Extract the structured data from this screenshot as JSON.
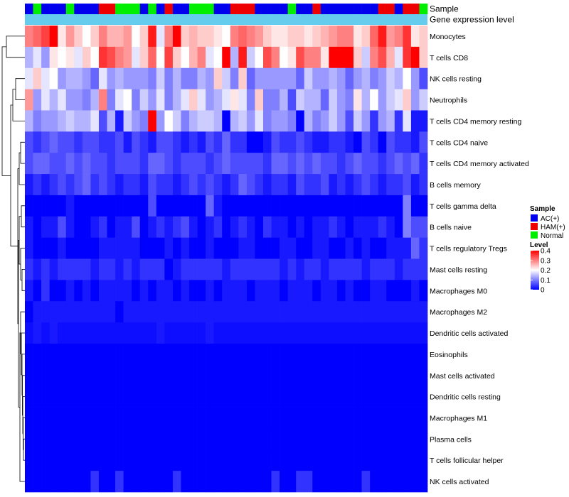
{
  "chart_data": {
    "type": "heatmap",
    "annotations": {
      "sample_title": "Sample",
      "gene_title": "Gene expression level",
      "gene_color": "#66ccee"
    },
    "sample_groups": [
      {
        "label": "AC(+)",
        "color": "#0000ee"
      },
      {
        "label": "HAM(+)",
        "color": "#ee0000"
      },
      {
        "label": "Normal",
        "color": "#00ee00"
      }
    ],
    "column_samples": [
      0,
      2,
      0,
      0,
      0,
      2,
      0,
      0,
      0,
      1,
      1,
      2,
      2,
      2,
      0,
      2,
      0,
      1,
      0,
      0,
      2,
      2,
      2,
      0,
      0,
      1,
      1,
      1,
      0,
      0,
      0,
      0,
      2,
      0,
      0,
      1,
      0,
      0,
      0,
      0,
      0,
      0,
      0,
      1,
      1,
      0,
      1,
      1,
      2
    ],
    "rows": [
      "Monocytes",
      "T cells CD8",
      "NK cells resting",
      "Neutrophils",
      "T cells CD4 memory resting",
      "T cells CD4 naive",
      "T cells CD4 memory activated",
      "B cells memory",
      "T cells gamma delta",
      "B cells naive",
      "T cells regulatory  Tregs",
      "Mast cells resting",
      "Macrophages M0",
      "Macrophages M2",
      "Dendritic cells activated",
      "Eosinophils",
      "Mast cells activated",
      "Dendritic cells resting",
      "Macrophages M1",
      "Plasma cells",
      "T cells follicular helper",
      "NK cells activated"
    ],
    "values": [
      [
        0.3,
        0.32,
        0.35,
        0.4,
        0.22,
        0.28,
        0.24,
        0.2,
        0.24,
        0.3,
        0.26,
        0.26,
        0.28,
        0.2,
        0.24,
        0.38,
        0.18,
        0.3,
        0.4,
        0.24,
        0.26,
        0.24,
        0.24,
        0.22,
        0.2,
        0.3,
        0.32,
        0.3,
        0.28,
        0.24,
        0.22,
        0.22,
        0.24,
        0.24,
        0.22,
        0.24,
        0.26,
        0.28,
        0.3,
        0.3,
        0.22,
        0.24,
        0.32,
        0.38,
        0.28,
        0.3,
        0.36,
        0.22,
        0.24
      ],
      [
        0.14,
        0.18,
        0.12,
        0.22,
        0.2,
        0.22,
        0.18,
        0.24,
        0.2,
        0.36,
        0.34,
        0.3,
        0.28,
        0.18,
        0.24,
        0.32,
        0.2,
        0.35,
        0.24,
        0.2,
        0.26,
        0.3,
        0.18,
        0.2,
        0.4,
        0.14,
        0.38,
        0.16,
        0.2,
        0.34,
        0.3,
        0.2,
        0.22,
        0.34,
        0.3,
        0.3,
        0.22,
        0.4,
        0.4,
        0.4,
        0.24,
        0.16,
        0.3,
        0.34,
        0.26,
        0.18,
        0.36,
        0.4,
        0.24
      ],
      [
        0.18,
        0.24,
        0.18,
        0.2,
        0.12,
        0.14,
        0.14,
        0.12,
        0.08,
        0.18,
        0.12,
        0.14,
        0.12,
        0.12,
        0.12,
        0.1,
        0.16,
        0.1,
        0.14,
        0.1,
        0.1,
        0.14,
        0.12,
        0.24,
        0.16,
        0.1,
        0.24,
        0.08,
        0.12,
        0.12,
        0.12,
        0.12,
        0.12,
        0.08,
        0.16,
        0.12,
        0.12,
        0.14,
        0.12,
        0.08,
        0.12,
        0.14,
        0.1,
        0.12,
        0.16,
        0.14,
        0.2,
        0.12,
        0.06
      ],
      [
        0.28,
        0.12,
        0.18,
        0.14,
        0.18,
        0.12,
        0.12,
        0.1,
        0.14,
        0.3,
        0.1,
        0.18,
        0.2,
        0.1,
        0.16,
        0.12,
        0.18,
        0.1,
        0.14,
        0.18,
        0.24,
        0.18,
        0.12,
        0.14,
        0.18,
        0.22,
        0.18,
        0.1,
        0.24,
        0.1,
        0.1,
        0.14,
        0.06,
        0.16,
        0.14,
        0.14,
        0.08,
        0.16,
        0.12,
        0.1,
        0.22,
        0.14,
        0.2,
        0.12,
        0.16,
        0.18,
        0.24,
        0.12,
        0.16
      ],
      [
        0.14,
        0.1,
        0.12,
        0.12,
        0.14,
        0.16,
        0.14,
        0.14,
        0.18,
        0.06,
        0.14,
        0.02,
        0.16,
        0.12,
        0.1,
        0.4,
        0.12,
        0.2,
        0.16,
        0.1,
        0.14,
        0.16,
        0.16,
        0.14,
        0.0,
        0.14,
        0.16,
        0.12,
        0.18,
        0.1,
        0.12,
        0.12,
        0.1,
        0.0,
        0.14,
        0.1,
        0.12,
        0.16,
        0.12,
        0.06,
        0.16,
        0.12,
        0.04,
        0.12,
        0.14,
        0.04,
        0.18,
        0.02,
        0.02
      ],
      [
        0.06,
        0.04,
        0.06,
        0.08,
        0.06,
        0.06,
        0.04,
        0.06,
        0.06,
        0.04,
        0.04,
        0.06,
        0.02,
        0.06,
        0.04,
        0.02,
        0.06,
        0.06,
        0.04,
        0.02,
        0.04,
        0.02,
        0.06,
        0.04,
        0.08,
        0.04,
        0.04,
        0.0,
        0.0,
        0.02,
        0.06,
        0.04,
        0.04,
        0.06,
        0.04,
        0.02,
        0.02,
        0.04,
        0.04,
        0.02,
        0.0,
        0.06,
        0.04,
        0.0,
        0.06,
        0.04,
        0.04,
        0.02,
        0.06
      ],
      [
        0.06,
        0.08,
        0.08,
        0.06,
        0.06,
        0.08,
        0.06,
        0.08,
        0.06,
        0.06,
        0.04,
        0.06,
        0.06,
        0.06,
        0.04,
        0.08,
        0.08,
        0.06,
        0.04,
        0.06,
        0.06,
        0.06,
        0.04,
        0.06,
        0.08,
        0.06,
        0.06,
        0.06,
        0.06,
        0.04,
        0.08,
        0.08,
        0.06,
        0.08,
        0.06,
        0.08,
        0.06,
        0.06,
        0.04,
        0.06,
        0.08,
        0.06,
        0.06,
        0.04,
        0.06,
        0.08,
        0.06,
        0.08,
        0.04
      ],
      [
        0.02,
        0.04,
        0.02,
        0.04,
        0.06,
        0.04,
        0.06,
        0.08,
        0.04,
        0.06,
        0.04,
        0.02,
        0.04,
        0.04,
        0.02,
        0.06,
        0.04,
        0.04,
        0.02,
        0.04,
        0.06,
        0.04,
        0.06,
        0.04,
        0.02,
        0.04,
        0.08,
        0.06,
        0.04,
        0.02,
        0.04,
        0.04,
        0.02,
        0.06,
        0.04,
        0.04,
        0.06,
        0.02,
        0.04,
        0.02,
        0.04,
        0.06,
        0.04,
        0.02,
        0.04,
        0.04,
        0.06,
        0.02,
        0.04
      ],
      [
        0.0,
        0.0,
        0.0,
        0.0,
        0.0,
        0.02,
        0.0,
        0.0,
        0.0,
        0.0,
        0.0,
        0.0,
        0.0,
        0.0,
        0.0,
        0.06,
        0.0,
        0.0,
        0.0,
        0.0,
        0.0,
        0.0,
        0.08,
        0.02,
        0.0,
        0.0,
        0.0,
        0.0,
        0.0,
        0.0,
        0.0,
        0.0,
        0.0,
        0.0,
        0.0,
        0.0,
        0.0,
        0.0,
        0.0,
        0.0,
        0.0,
        0.0,
        0.0,
        0.0,
        0.0,
        0.0,
        0.1,
        0.0,
        0.0
      ],
      [
        0.02,
        0.0,
        0.02,
        0.02,
        0.06,
        0.02,
        0.0,
        0.0,
        0.02,
        0.04,
        0.0,
        0.02,
        0.02,
        0.06,
        0.0,
        0.02,
        0.04,
        0.02,
        0.04,
        0.06,
        0.02,
        0.0,
        0.02,
        0.04,
        0.0,
        0.02,
        0.04,
        0.02,
        0.0,
        0.04,
        0.02,
        0.02,
        0.0,
        0.02,
        0.0,
        0.02,
        0.02,
        0.04,
        0.02,
        0.0,
        0.02,
        0.02,
        0.02,
        0.04,
        0.02,
        0.0,
        0.1,
        0.06,
        0.06
      ],
      [
        0.02,
        0.0,
        0.0,
        0.0,
        0.02,
        0.0,
        0.0,
        0.0,
        0.0,
        0.02,
        0.02,
        0.02,
        0.02,
        0.02,
        0.0,
        0.0,
        0.0,
        0.02,
        0.0,
        0.02,
        0.0,
        0.0,
        0.02,
        0.0,
        0.0,
        0.0,
        0.02,
        0.02,
        0.0,
        0.0,
        0.0,
        0.02,
        0.02,
        0.0,
        0.0,
        0.02,
        0.02,
        0.0,
        0.0,
        0.02,
        0.0,
        0.02,
        0.0,
        0.0,
        0.02,
        0.02,
        0.02,
        0.08,
        0.04
      ],
      [
        0.04,
        0.02,
        0.04,
        0.02,
        0.04,
        0.04,
        0.04,
        0.04,
        0.02,
        0.04,
        0.04,
        0.02,
        0.04,
        0.02,
        0.04,
        0.04,
        0.04,
        0.0,
        0.02,
        0.04,
        0.04,
        0.04,
        0.04,
        0.04,
        0.02,
        0.04,
        0.04,
        0.04,
        0.04,
        0.04,
        0.04,
        0.02,
        0.04,
        0.02,
        0.04,
        0.04,
        0.02,
        0.04,
        0.04,
        0.04,
        0.04,
        0.02,
        0.04,
        0.04,
        0.04,
        0.02,
        0.04,
        0.04,
        0.04
      ],
      [
        0.02,
        0.0,
        0.04,
        0.0,
        0.0,
        0.02,
        0.0,
        0.02,
        0.0,
        0.02,
        0.02,
        0.02,
        0.02,
        0.0,
        0.02,
        0.0,
        0.02,
        0.02,
        0.0,
        0.02,
        0.0,
        0.0,
        0.02,
        0.0,
        0.02,
        0.02,
        0.02,
        0.0,
        0.02,
        0.02,
        0.02,
        0.0,
        0.02,
        0.02,
        0.02,
        0.0,
        0.02,
        0.02,
        0.0,
        0.02,
        0.0,
        0.0,
        0.02,
        0.02,
        0.0,
        0.0,
        0.0,
        0.02,
        0.0
      ],
      [
        0.0,
        0.02,
        0.02,
        0.02,
        0.02,
        0.02,
        0.02,
        0.02,
        0.02,
        0.02,
        0.02,
        0.0,
        0.02,
        0.02,
        0.02,
        0.02,
        0.02,
        0.02,
        0.02,
        0.02,
        0.02,
        0.02,
        0.02,
        0.02,
        0.02,
        0.02,
        0.02,
        0.02,
        0.02,
        0.02,
        0.02,
        0.02,
        0.02,
        0.02,
        0.02,
        0.02,
        0.02,
        0.02,
        0.02,
        0.02,
        0.02,
        0.02,
        0.02,
        0.02,
        0.02,
        0.02,
        0.02,
        0.02,
        0.02
      ],
      [
        0.01,
        0.02,
        0.01,
        0.02,
        0.01,
        0.01,
        0.01,
        0.01,
        0.01,
        0.01,
        0.01,
        0.01,
        0.01,
        0.01,
        0.01,
        0.01,
        0.02,
        0.01,
        0.01,
        0.01,
        0.01,
        0.01,
        0.02,
        0.01,
        0.01,
        0.01,
        0.01,
        0.01,
        0.01,
        0.01,
        0.01,
        0.01,
        0.01,
        0.01,
        0.01,
        0.01,
        0.01,
        0.01,
        0.01,
        0.01,
        0.01,
        0.01,
        0.01,
        0.01,
        0.01,
        0.01,
        0.01,
        0.01,
        0.01
      ],
      [
        0.0,
        0.0,
        0.0,
        0.0,
        0.0,
        0.0,
        0.0,
        0.0,
        0.0,
        0.0,
        0.0,
        0.0,
        0.0,
        0.0,
        0.0,
        0.0,
        0.0,
        0.0,
        0.0,
        0.0,
        0.0,
        0.0,
        0.0,
        0.0,
        0.0,
        0.0,
        0.0,
        0.0,
        0.0,
        0.0,
        0.0,
        0.0,
        0.0,
        0.0,
        0.0,
        0.0,
        0.0,
        0.0,
        0.0,
        0.0,
        0.0,
        0.0,
        0.0,
        0.0,
        0.0,
        0.0,
        0.0,
        0.0,
        0.0
      ],
      [
        0.0,
        0.0,
        0.0,
        0.0,
        0.0,
        0.0,
        0.0,
        0.0,
        0.0,
        0.0,
        0.0,
        0.0,
        0.0,
        0.0,
        0.0,
        0.0,
        0.0,
        0.0,
        0.0,
        0.0,
        0.0,
        0.0,
        0.0,
        0.0,
        0.0,
        0.0,
        0.0,
        0.0,
        0.0,
        0.0,
        0.0,
        0.0,
        0.0,
        0.0,
        0.0,
        0.0,
        0.0,
        0.0,
        0.0,
        0.0,
        0.0,
        0.0,
        0.0,
        0.0,
        0.0,
        0.0,
        0.0,
        0.0,
        0.0
      ],
      [
        0.0,
        0.0,
        0.0,
        0.0,
        0.0,
        0.0,
        0.0,
        0.0,
        0.0,
        0.0,
        0.0,
        0.0,
        0.0,
        0.0,
        0.0,
        0.0,
        0.0,
        0.0,
        0.0,
        0.0,
        0.0,
        0.0,
        0.0,
        0.0,
        0.0,
        0.0,
        0.0,
        0.0,
        0.0,
        0.0,
        0.0,
        0.0,
        0.0,
        0.0,
        0.0,
        0.0,
        0.0,
        0.0,
        0.0,
        0.0,
        0.0,
        0.0,
        0.0,
        0.0,
        0.0,
        0.0,
        0.0,
        0.0,
        0.0
      ],
      [
        0.0,
        0.0,
        0.0,
        0.0,
        0.0,
        0.0,
        0.0,
        0.0,
        0.0,
        0.0,
        0.0,
        0.0,
        0.0,
        0.0,
        0.0,
        0.0,
        0.0,
        0.0,
        0.0,
        0.0,
        0.0,
        0.0,
        0.0,
        0.0,
        0.0,
        0.0,
        0.0,
        0.0,
        0.0,
        0.0,
        0.0,
        0.0,
        0.0,
        0.0,
        0.0,
        0.0,
        0.0,
        0.0,
        0.0,
        0.0,
        0.0,
        0.0,
        0.0,
        0.0,
        0.0,
        0.0,
        0.0,
        0.0,
        0.0
      ],
      [
        0.0,
        0.0,
        0.0,
        0.0,
        0.0,
        0.0,
        0.0,
        0.0,
        0.0,
        0.0,
        0.0,
        0.0,
        0.0,
        0.0,
        0.0,
        0.0,
        0.0,
        0.0,
        0.0,
        0.0,
        0.0,
        0.0,
        0.0,
        0.0,
        0.0,
        0.0,
        0.0,
        0.0,
        0.0,
        0.0,
        0.0,
        0.0,
        0.0,
        0.0,
        0.0,
        0.0,
        0.0,
        0.0,
        0.0,
        0.0,
        0.0,
        0.0,
        0.0,
        0.0,
        0.0,
        0.0,
        0.0,
        0.0,
        0.0
      ],
      [
        0.0,
        0.0,
        0.0,
        0.0,
        0.0,
        0.0,
        0.0,
        0.0,
        0.0,
        0.0,
        0.0,
        0.0,
        0.0,
        0.0,
        0.0,
        0.0,
        0.0,
        0.0,
        0.0,
        0.0,
        0.0,
        0.0,
        0.0,
        0.0,
        0.0,
        0.0,
        0.0,
        0.0,
        0.0,
        0.0,
        0.0,
        0.0,
        0.0,
        0.0,
        0.0,
        0.0,
        0.0,
        0.0,
        0.0,
        0.0,
        0.0,
        0.0,
        0.0,
        0.0,
        0.0,
        0.0,
        0.0,
        0.0,
        0.0
      ],
      [
        0.0,
        0.0,
        0.0,
        0.0,
        0.0,
        0.0,
        0.0,
        0.0,
        0.04,
        0.0,
        0.0,
        0.04,
        0.0,
        0.0,
        0.0,
        0.0,
        0.0,
        0.0,
        0.04,
        0.0,
        0.0,
        0.0,
        0.0,
        0.0,
        0.0,
        0.0,
        0.0,
        0.0,
        0.0,
        0.0,
        0.04,
        0.0,
        0.0,
        0.04,
        0.04,
        0.0,
        0.0,
        0.0,
        0.0,
        0.0,
        0.0,
        0.04,
        0.0,
        0.0,
        0.0,
        0.0,
        0.0,
        0.0,
        0.0
      ]
    ],
    "legend": {
      "sample_title": "Sample",
      "level_title": "Level",
      "level_ticks": [
        "0.4",
        "0.3",
        "0.2",
        "0.1",
        "0"
      ],
      "range": [
        0,
        0.4
      ]
    },
    "color_scale": {
      "low": "#0000ff",
      "mid": "#ffffff",
      "high": "#ff0000",
      "mid_value": 0.2
    }
  }
}
